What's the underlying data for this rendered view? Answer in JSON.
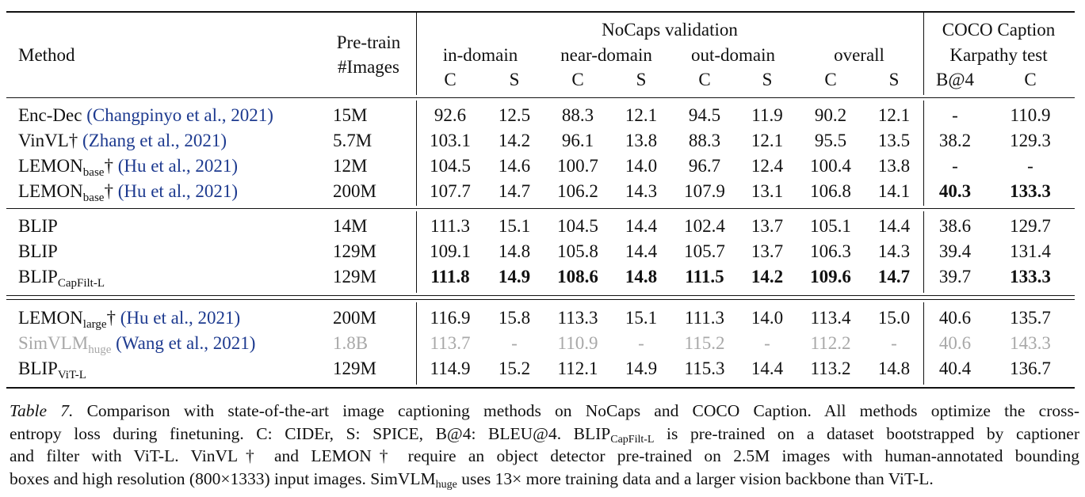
{
  "table": {
    "header": {
      "method": "Method",
      "pretrain_line1": "Pre-train",
      "pretrain_line2": "#Images",
      "nocaps": "NoCaps validation",
      "coco_line1": "COCO Caption",
      "coco_line2": "Karpathy test",
      "groups": [
        "in-domain",
        "near-domain",
        "out-domain",
        "overall"
      ],
      "sub": [
        "C",
        "S",
        "C",
        "S",
        "C",
        "S",
        "C",
        "S",
        "B@4",
        "C"
      ]
    },
    "rows": [
      {
        "name": "Enc-Dec",
        "sub": "",
        "dagger": "",
        "cite": "(Changpinyo et al., 2021)",
        "images": "15M",
        "values": [
          "92.6",
          "12.5",
          "88.3",
          "12.1",
          "94.5",
          "11.9",
          "90.2",
          "12.1",
          "-",
          "110.9"
        ],
        "bold": [],
        "gray": false
      },
      {
        "name": "VinVL",
        "sub": "",
        "dagger": "†",
        "cite": "(Zhang et al., 2021)",
        "images": "5.7M",
        "values": [
          "103.1",
          "14.2",
          "96.1",
          "13.8",
          "88.3",
          "12.1",
          "95.5",
          "13.5",
          "38.2",
          "129.3"
        ],
        "bold": [],
        "gray": false
      },
      {
        "name": "LEMON",
        "sub": "base",
        "dagger": "†",
        "cite": "(Hu et al., 2021)",
        "images": "12M",
        "values": [
          "104.5",
          "14.6",
          "100.7",
          "14.0",
          "96.7",
          "12.4",
          "100.4",
          "13.8",
          "-",
          "-"
        ],
        "bold": [],
        "gray": false
      },
      {
        "name": "LEMON",
        "sub": "base",
        "dagger": "†",
        "cite": "(Hu et al., 2021)",
        "images": "200M",
        "values": [
          "107.7",
          "14.7",
          "106.2",
          "14.3",
          "107.9",
          "13.1",
          "106.8",
          "14.1",
          "40.3",
          "133.3"
        ],
        "bold": [
          8,
          9
        ],
        "gray": false
      },
      {
        "name": "BLIP",
        "sub": "",
        "dagger": "",
        "cite": "",
        "images": "14M",
        "values": [
          "111.3",
          "15.1",
          "104.5",
          "14.4",
          "102.4",
          "13.7",
          "105.1",
          "14.4",
          "38.6",
          "129.7"
        ],
        "bold": [],
        "gray": false
      },
      {
        "name": "BLIP",
        "sub": "",
        "dagger": "",
        "cite": "",
        "images": "129M",
        "values": [
          "109.1",
          "14.8",
          "105.8",
          "14.4",
          "105.7",
          "13.7",
          "106.3",
          "14.3",
          "39.4",
          "131.4"
        ],
        "bold": [],
        "gray": false
      },
      {
        "name": "BLIP",
        "sub": "CapFilt-L",
        "dagger": "",
        "cite": "",
        "images": "129M",
        "values": [
          "111.8",
          "14.9",
          "108.6",
          "14.8",
          "111.5",
          "14.2",
          "109.6",
          "14.7",
          "39.7",
          "133.3"
        ],
        "bold": [
          0,
          1,
          2,
          3,
          4,
          5,
          6,
          7,
          9
        ],
        "gray": false
      },
      {
        "name": "LEMON",
        "sub": "large",
        "dagger": "†",
        "cite": "(Hu et al., 2021)",
        "images": "200M",
        "values": [
          "116.9",
          "15.8",
          "113.3",
          "15.1",
          "111.3",
          "14.0",
          "113.4",
          "15.0",
          "40.6",
          "135.7"
        ],
        "bold": [],
        "gray": false
      },
      {
        "name": "SimVLM",
        "sub": "huge",
        "dagger": "",
        "cite": "(Wang et al., 2021)",
        "images": "1.8B",
        "values": [
          "113.7",
          "-",
          "110.9",
          "-",
          "115.2",
          "-",
          "112.2",
          "-",
          "40.6",
          "143.3"
        ],
        "bold": [],
        "gray": true
      },
      {
        "name": "BLIP",
        "sub": "ViT-L",
        "dagger": "",
        "cite": "",
        "images": "129M",
        "values": [
          "114.9",
          "15.2",
          "112.1",
          "14.9",
          "115.3",
          "14.4",
          "113.2",
          "14.8",
          "40.4",
          "136.7"
        ],
        "bold": [],
        "gray": false
      }
    ]
  },
  "caption": {
    "label": "Table 7.",
    "l1": "Comparison with state-of-the-art image captioning methods on NoCaps and COCO Caption. All methods optimize the cross-",
    "l2a": "entropy loss during finetuning. C: CIDEr, S: SPICE, B@4: BLEU@4. BLIP",
    "l2sub": "CapFilt-L",
    "l2b": " is pre-trained on a dataset bootstrapped by captioner",
    "l3": "and filter with ViT-L. VinVL† and LEMON† require an object detector pre-trained on 2.5M images with human-annotated bounding",
    "l4a": "boxes and high resolution (800×1333) input images. SimVLM",
    "l4sub": "huge",
    "l4b": " uses 13× more training data and a larger vision backbone than ViT-L."
  }
}
